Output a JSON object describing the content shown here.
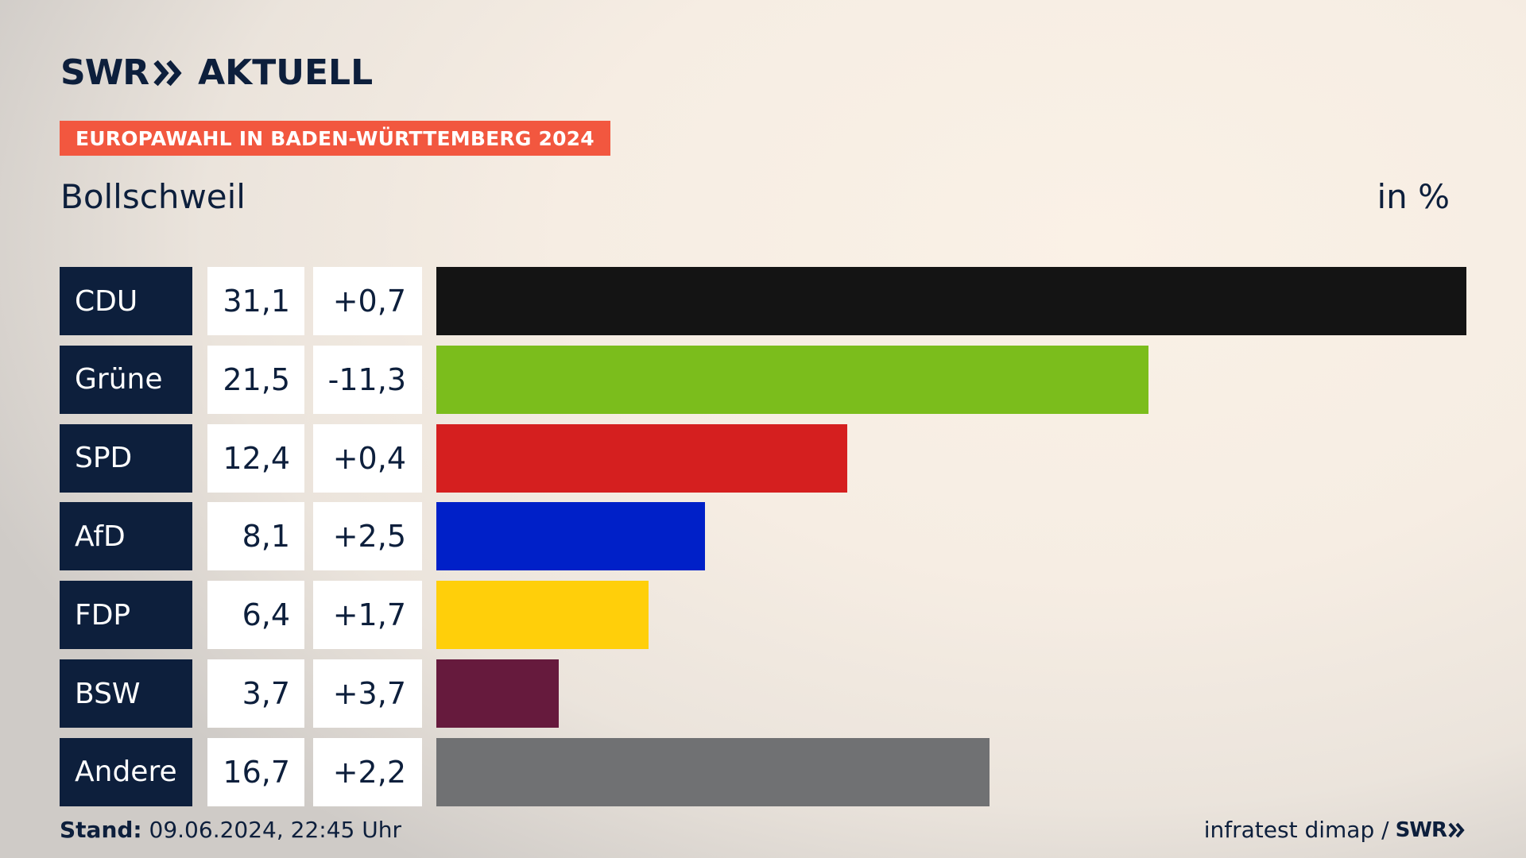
{
  "brand": {
    "swr": "SWR",
    "aktuell": "AKTUELL"
  },
  "banner": "EUROPAWAHL IN BADEN-WÜRTTEMBERG 2024",
  "location": "Bollschweil",
  "unit": "in %",
  "chart_data": {
    "type": "bar",
    "orientation": "horizontal",
    "categories": [
      "CDU",
      "Grüne",
      "SPD",
      "AfD",
      "FDP",
      "BSW",
      "Andere"
    ],
    "values": [
      31.1,
      21.5,
      12.4,
      8.1,
      6.4,
      3.7,
      16.7
    ],
    "value_labels": [
      "31,1",
      "21,5",
      "12,4",
      "8,1",
      "6,4",
      "3,7",
      "16,7"
    ],
    "diff_labels": [
      "+0,7",
      "-11,3",
      "+0,4",
      "+2,5",
      "+1,7",
      "+3,7",
      "+2,2"
    ],
    "colors": [
      "#141414",
      "#7bbd1c",
      "#d51f1f",
      "#0020c8",
      "#ffcf0a",
      "#661a3d",
      "#707173"
    ],
    "xlim": [
      0,
      31.1
    ],
    "grid": false,
    "legend": "none"
  },
  "footer": {
    "stand_label": "Stand:",
    "stand_value": "09.06.2024, 22:45 Uhr",
    "source": "infratest dimap /",
    "source_brand": "SWR"
  }
}
